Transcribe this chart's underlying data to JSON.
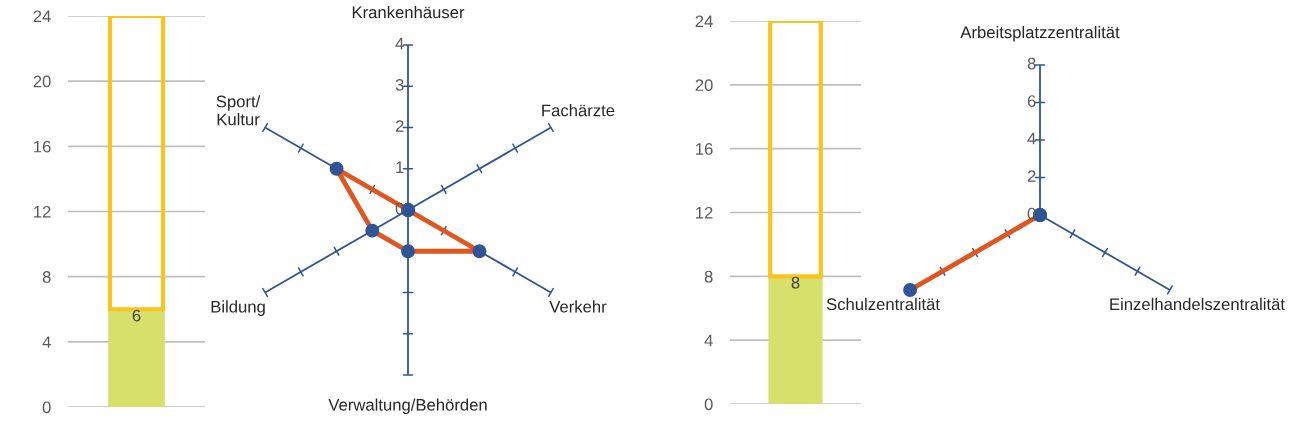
{
  "chart_data": [
    {
      "type": "bar",
      "stacked": true,
      "categories": [
        null
      ],
      "series": [
        {
          "color": "#d7e06b",
          "values": [
            6
          ],
          "value_labels": [
            "6"
          ]
        },
        {
          "color": "#fbc31b",
          "values": [
            18
          ]
        }
      ],
      "ylim": [
        0,
        24
      ],
      "yticks": [
        0,
        4,
        8,
        12,
        16,
        20,
        24
      ],
      "grid": "y",
      "legend": false
    },
    {
      "type": "radar",
      "categories": [
        "Krankenhäuser",
        "Fachärzte",
        "Verkehr",
        "Verwaltung/Behörden",
        "Bildung",
        "Sport/\nKultur"
      ],
      "series": [
        {
          "color": "#e0561f",
          "values": [
            0,
            0,
            2,
            1,
            1,
            2
          ]
        }
      ],
      "ylim": [
        0,
        4
      ],
      "yticks": [
        0,
        1,
        2,
        3,
        4
      ],
      "marker": "circle",
      "legend": false
    },
    {
      "type": "bar",
      "stacked": true,
      "categories": [
        null
      ],
      "series": [
        {
          "color": "#d7e06b",
          "values": [
            8
          ],
          "value_labels": [
            "8"
          ]
        },
        {
          "color": "#fbc31b",
          "values": [
            16
          ]
        }
      ],
      "ylim": [
        0,
        24
      ],
      "yticks": [
        0,
        4,
        8,
        12,
        16,
        20,
        24
      ],
      "grid": "y",
      "legend": false
    },
    {
      "type": "radar",
      "categories": [
        "Arbeitsplatzzentralität",
        "Einzelhandelszentralität",
        "Schulzentralität"
      ],
      "series": [
        {
          "color": "#e0561f",
          "values": [
            0,
            0,
            8
          ]
        }
      ],
      "ylim": [
        0,
        8
      ],
      "yticks": [
        0,
        2,
        4,
        6,
        8
      ],
      "marker": "circle",
      "legend": false
    }
  ]
}
